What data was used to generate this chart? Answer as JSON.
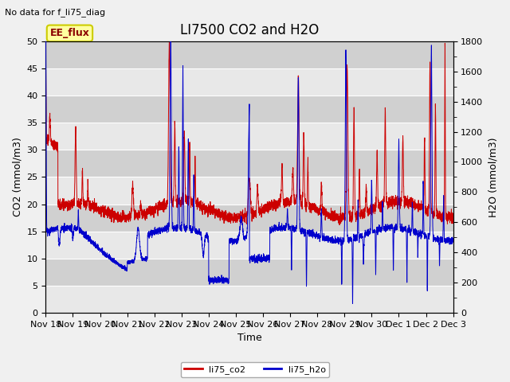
{
  "title": "LI7500 CO2 and H2O",
  "top_left_text": "No data for f_li75_diag",
  "ee_flux_label": "EE_flux",
  "xlabel": "Time",
  "ylabel_left": "CO2 (mmol/m3)",
  "ylabel_right": "H2O (mmol/m3)",
  "ylim_left": [
    0,
    50
  ],
  "ylim_right": [
    0,
    1800
  ],
  "co2_color": "#cc0000",
  "h2o_color": "#0000cc",
  "fig_bg_color": "#f0f0f0",
  "plot_bg_light": "#e8e8e8",
  "plot_bg_dark": "#d0d0d0",
  "grid_color": "#ffffff",
  "legend_co2": "li75_co2",
  "legend_h2o": "li75_h2o",
  "title_fontsize": 12,
  "axis_fontsize": 9,
  "tick_fontsize": 8,
  "annotation_fontsize": 8,
  "ee_flux_fontsize": 9,
  "tick_labels": [
    "Nov 18",
    "Nov 19",
    "Nov 20",
    "Nov 21",
    "Nov 22",
    "Nov 23",
    "Nov 24",
    "Nov 25",
    "Nov 26",
    "Nov 27",
    "Nov 28",
    "Nov 29",
    "Nov 30",
    "Dec 1",
    "Dec 2",
    "Dec 3"
  ]
}
